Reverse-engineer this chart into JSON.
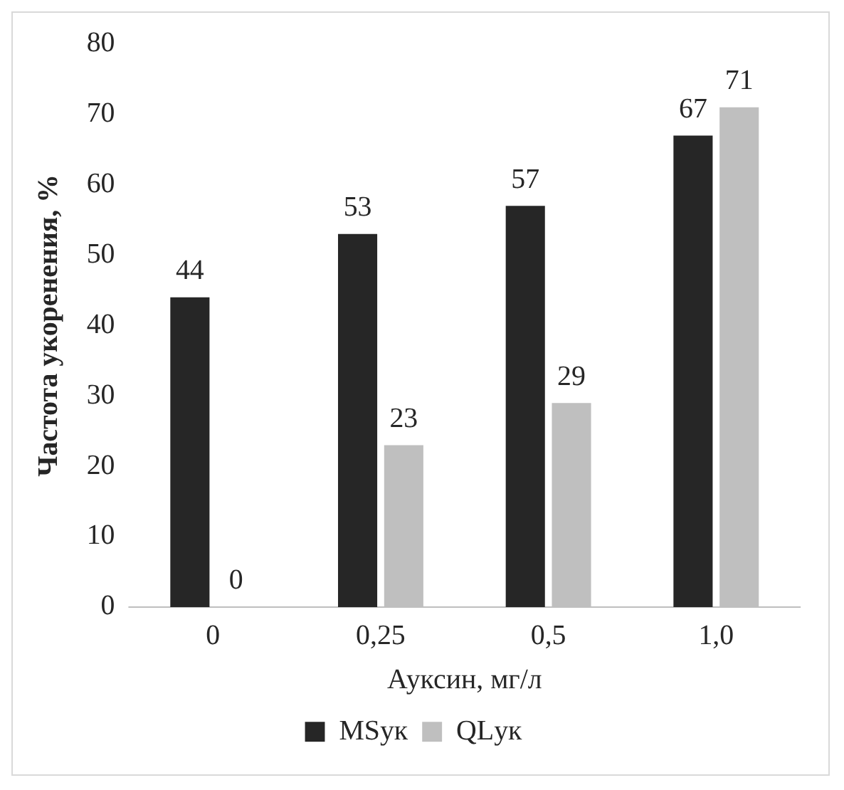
{
  "chart_data": {
    "type": "bar",
    "xlabel": "Ауксин, мг/л",
    "ylabel": "Частота укоренения, %",
    "categories": [
      "0",
      "0,25",
      "0,5",
      "1,0"
    ],
    "series": [
      {
        "name": "MSук",
        "color": "#262626",
        "values": [
          44,
          53,
          57,
          67
        ]
      },
      {
        "name": "QLук",
        "color": "#bfbfbf",
        "values": [
          0,
          23,
          29,
          71
        ]
      }
    ],
    "ylim": [
      0,
      80
    ],
    "yticks": [
      0,
      10,
      20,
      30,
      40,
      50,
      60,
      70,
      80
    ],
    "grid": false,
    "legend": "bottom",
    "data_labels": true
  }
}
